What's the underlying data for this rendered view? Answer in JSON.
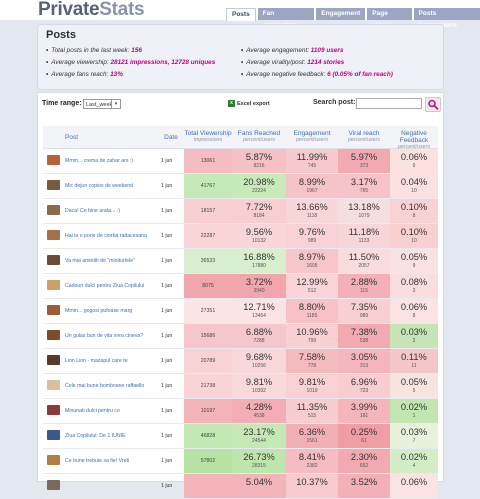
{
  "app": {
    "brand_main": "Private",
    "brand_bold": "Stats"
  },
  "tabs": [
    {
      "label": "Posts",
      "active": true
    },
    {
      "label": "Fan acquisition"
    },
    {
      "label": "Engagement"
    },
    {
      "label": "Page views"
    },
    {
      "label": "Posts impressions"
    }
  ],
  "summary": {
    "title": "Posts",
    "left": [
      {
        "label": "Total posts in the last week: ",
        "value": "156"
      },
      {
        "label": "Average viewership: ",
        "value": "28121 impressions, 12728 uniques"
      },
      {
        "label": "Average fans reach: ",
        "value": "13%"
      }
    ],
    "right": [
      {
        "label": "Average engagement: ",
        "value": "1109 users"
      },
      {
        "label": "Average virality/post: ",
        "value": "1214 stories"
      },
      {
        "label": "Average negative feedback: ",
        "value": "6 (0.05% of fan reach)"
      }
    ]
  },
  "controls": {
    "time_range_label": "Time range:",
    "time_range_value": "Last_week",
    "excel_label": "Excel export",
    "search_label": "Search post:",
    "search_value": ""
  },
  "columns": [
    {
      "label": "Post",
      "sub": ""
    },
    {
      "label": "Date",
      "sub": ""
    },
    {
      "label": "Total Viewership",
      "sub": "impressions"
    },
    {
      "label": "Fans Reached",
      "sub": "percent/users"
    },
    {
      "label": "Engagement",
      "sub": "percent/users"
    },
    {
      "label": "Viral reach",
      "sub": "percent/users"
    },
    {
      "label": "Negative Feedback",
      "sub": "percent/users"
    }
  ],
  "rows": [
    {
      "post": "Mmm... crema de zahar ars :)",
      "date": "1 jun",
      "views": "13061",
      "v_color": "#f5bcc1",
      "fans": [
        "5.87%",
        "8216"
      ],
      "f_color": "#f5c1c4",
      "eng": [
        "11.99%",
        "745"
      ],
      "e_color": "#f7c9cc",
      "vir": [
        "5.97%",
        "373"
      ],
      "r_color": "#f3a9b0",
      "neg": [
        "0.06%",
        "9"
      ],
      "n_color": "#fbe2e0"
    },
    {
      "post": "Mic dejun copios de weekend",
      "date": "1 jun",
      "views": "41767",
      "v_color": "#c6e9ba",
      "fans": [
        "20.98%",
        "22224"
      ],
      "f_color": "#c6eab8",
      "eng": [
        "8.99%",
        "1967"
      ],
      "e_color": "#f6c4c7",
      "vir": [
        "3.17%",
        "765"
      ],
      "r_color": "#f6c4c8",
      "neg": [
        "0.04%",
        "10"
      ],
      "n_color": "#fbe0df"
    },
    {
      "post": "Daca! Ce bine arata... :)",
      "date": "1 jun",
      "views": "18157",
      "v_color": "#f8d0d2",
      "fans": [
        "7.72%",
        "8184"
      ],
      "f_color": "#f8ced1",
      "eng": [
        "13.66%",
        "1118"
      ],
      "e_color": "#f9d6d8",
      "vir": [
        "13.18%",
        "1079"
      ],
      "r_color": "#f5dede",
      "neg": [
        "0.10%",
        "8"
      ],
      "n_color": "#f8d2d2"
    },
    {
      "post": "Hai la o porie de ciorba radacesana",
      "date": "1 jun",
      "views": "22287",
      "v_color": "#f9d5d6",
      "fans": [
        "9.56%",
        "10132"
      ],
      "f_color": "#f9d7d8",
      "eng": [
        "9.76%",
        "989"
      ],
      "e_color": "#f8d2d4",
      "vir": [
        "11.18%",
        "1133"
      ],
      "r_color": "#f8d6d7",
      "neg": [
        "0.10%",
        "10"
      ],
      "n_color": "#f8d0d0"
    },
    {
      "post": "Va mai amintiti de \"miniturtele\"",
      "date": "1 jun",
      "views": "36533",
      "v_color": "#d8efcf",
      "fans": [
        "16.88%",
        "17880"
      ],
      "f_color": "#d7efcd",
      "eng": [
        "8.97%",
        "1605"
      ],
      "e_color": "#f6c6c9",
      "vir": [
        "11.50%",
        "2057"
      ],
      "r_color": "#f9dcdc",
      "neg": [
        "0.05%",
        "9"
      ],
      "n_color": "#f9e2e1"
    },
    {
      "post": "Cadouri dulci pentru Ziua Copilului",
      "date": "1 jun",
      "views": "8075",
      "v_color": "#f1a5ad",
      "fans": [
        "3.72%",
        "3940"
      ],
      "f_color": "#f1a6ad",
      "eng": [
        "12.99%",
        "512"
      ],
      "e_color": "#f9d5d7",
      "vir": [
        "2.88%",
        "115"
      ],
      "r_color": "#f3b0b6",
      "neg": [
        "0.08%",
        "3"
      ],
      "n_color": "#f9dedd"
    },
    {
      "post": "Mmm... gogosi pufoase marg",
      "date": "1 jun",
      "views": "27351",
      "v_color": "#fbe5e5",
      "fans": [
        "12.71%",
        "13464"
      ],
      "f_color": "#fbe4e3",
      "eng": [
        "8.80%",
        "1185"
      ],
      "e_color": "#f6c2c5",
      "vir": [
        "7.35%",
        "989"
      ],
      "r_color": "#f8d0d2",
      "neg": [
        "0.06%",
        "8"
      ],
      "n_color": "#fbe3e2"
    },
    {
      "post": "Un gulas bun de vita vrea cineva?",
      "date": "1 jun",
      "views": "15686",
      "v_color": "#f6c6ca",
      "fans": [
        "6.88%",
        "7288"
      ],
      "f_color": "#f6c7ca",
      "eng": [
        "10.96%",
        "799"
      ],
      "e_color": "#f8d0d2",
      "vir": [
        "7.38%",
        "538"
      ],
      "r_color": "#f3aab1",
      "neg": [
        "0.03%",
        "2"
      ],
      "n_color": "#c5e5b6"
    },
    {
      "post": "Lion Lion - mazapul care te",
      "date": "1 jun",
      "views": "20789",
      "v_color": "#f8d2d4",
      "fans": [
        "9.68%",
        "10256"
      ],
      "f_color": "#f9d8d9",
      "eng": [
        "7.58%",
        "778"
      ],
      "e_color": "#f5bcc0",
      "vir": [
        "3.05%",
        "313"
      ],
      "r_color": "#f4b6bc",
      "neg": [
        "0.11%",
        "11"
      ],
      "n_color": "#f5c6c8"
    },
    {
      "post": "Cele mai bune bomboane raffaello",
      "date": "1 jun",
      "views": "21738",
      "v_color": "#f9d4d6",
      "fans": [
        "9.81%",
        "10392"
      ],
      "f_color": "#f9d9da",
      "eng": [
        "9.81%",
        "1019"
      ],
      "e_color": "#f8d2d3",
      "vir": [
        "6.96%",
        "723"
      ],
      "r_color": "#f7cdd0",
      "neg": [
        "0.05%",
        "5"
      ],
      "n_color": "#f8e4df"
    },
    {
      "post": "Minunati dulci pentru co",
      "date": "1 jun",
      "views": "10197",
      "v_color": "#f3b4ba",
      "fans": [
        "4.28%",
        "4538"
      ],
      "f_color": "#f2aeb4",
      "eng": [
        "11.35%",
        "515"
      ],
      "e_color": "#f8cdd0",
      "vir": [
        "3.99%",
        "181"
      ],
      "r_color": "#f4b6bb",
      "neg": [
        "0.02%",
        "1"
      ],
      "n_color": "#c2e6b0"
    },
    {
      "post": "Ziua Copilului: De 1 IUNIE",
      "date": "1 jun",
      "views": "46828",
      "v_color": "#c2e8b4",
      "fans": [
        "23.17%",
        "24544"
      ],
      "f_color": "#c5e9b6",
      "eng": [
        "6.36%",
        "1561"
      ],
      "e_color": "#f2b0b6",
      "vir": [
        "0.25%",
        "61"
      ],
      "r_color": "#ef9ea6",
      "neg": [
        "0.03%",
        "7"
      ],
      "n_color": "#e6f2dc"
    },
    {
      "post": "Ce bune trebuie sa fie! Vreti",
      "date": "1 jun",
      "views": "57802",
      "v_color": "#b7e3a5",
      "fans": [
        "26.73%",
        "28315"
      ],
      "f_color": "#bde6ad",
      "eng": [
        "8.41%",
        "2382"
      ],
      "e_color": "#f5bdc1",
      "vir": [
        "2.30%",
        "652"
      ],
      "r_color": "#f2aab1",
      "neg": [
        "0.02%",
        "4"
      ],
      "n_color": "#d3edc6"
    },
    {
      "post": "",
      "date": "1 jun",
      "views": "",
      "v_color": "#f3b4ba",
      "fans": [
        "5.04%",
        ""
      ],
      "f_color": "#f3b4ba",
      "eng": [
        "10.37%",
        ""
      ],
      "e_color": "#f8ccce",
      "vir": [
        "3.52%",
        ""
      ],
      "r_color": "#f3b0b6",
      "neg": [
        "0.06%",
        ""
      ],
      "n_color": "#fbe3e2"
    }
  ]
}
